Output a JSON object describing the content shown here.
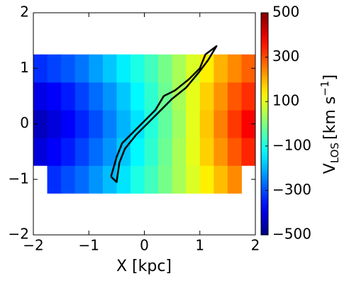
{
  "chart_data": {
    "type": "heatmap",
    "xlabel": "X [kpc]",
    "colorbar_label": {
      "main": "V",
      "sub": "LOS",
      "unit": "[km s",
      "sup": "−1",
      "close": "]"
    },
    "colormap": "jet",
    "xlim": [
      -2,
      2
    ],
    "ylim": [
      -2,
      2
    ],
    "xticks": [
      {
        "value": -2,
        "label": "−2"
      },
      {
        "value": -1,
        "label": "−1"
      },
      0,
      1,
      2
    ],
    "yticks": [
      {
        "value": -2,
        "label": "−2"
      },
      {
        "value": -1,
        "label": "−1"
      },
      0,
      1,
      2
    ],
    "clim": [
      -500,
      500
    ],
    "cticks": [
      {
        "value": -500,
        "label": "−500"
      },
      {
        "value": -300,
        "label": "−300"
      },
      {
        "value": -100,
        "label": "−100"
      },
      100,
      300,
      500
    ],
    "x_edges": [
      -2,
      -1.75,
      -1.5,
      -1.25,
      -1,
      -0.75,
      -0.5,
      -0.25,
      0,
      0.25,
      0.5,
      0.75,
      1,
      1.25,
      1.5,
      1.75,
      2
    ],
    "y_edges": [
      -1.25,
      -0.75,
      -0.25,
      0.25,
      0.75,
      1.25
    ],
    "values": [
      [
        null,
        -330,
        -300,
        -270,
        -230,
        -190,
        -150,
        -100,
        -60,
        -10,
        40,
        90,
        140,
        190,
        240,
        null
      ],
      [
        -410,
        -380,
        -350,
        -310,
        -270,
        -230,
        -180,
        -130,
        -80,
        -20,
        40,
        100,
        170,
        230,
        290,
        340
      ],
      [
        -440,
        -410,
        -380,
        -340,
        -300,
        -250,
        -200,
        -150,
        -90,
        -30,
        30,
        100,
        180,
        250,
        320,
        380
      ],
      [
        -400,
        -380,
        -350,
        -310,
        -270,
        -230,
        -180,
        -130,
        -80,
        -20,
        40,
        100,
        170,
        230,
        290,
        330
      ],
      [
        -330,
        -310,
        -290,
        -260,
        -220,
        -180,
        -140,
        -100,
        -60,
        -10,
        40,
        90,
        140,
        200,
        240,
        280
      ]
    ],
    "contour": {
      "color": "#000000",
      "x": [
        -0.6,
        -0.5,
        -0.4,
        -0.25,
        0,
        0.2,
        0.35,
        0.55,
        0.8,
        1.0,
        1.1,
        1.3,
        1.15,
        1.0,
        0.75,
        0.5,
        0.3,
        0.1,
        -0.15,
        -0.35,
        -0.45,
        -0.5,
        -0.6
      ],
      "y": [
        -0.95,
        -0.6,
        -0.35,
        -0.2,
        0.05,
        0.25,
        0.5,
        0.6,
        0.8,
        1.0,
        1.25,
        1.4,
        1.15,
        0.95,
        0.65,
        0.45,
        0.25,
        0.05,
        -0.2,
        -0.45,
        -0.7,
        -1.05,
        -0.95
      ]
    }
  }
}
